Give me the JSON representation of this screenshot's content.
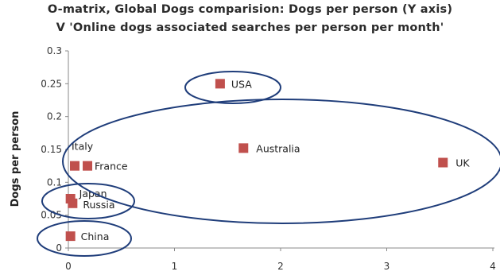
{
  "chart_data": {
    "type": "scatter",
    "title_line1": "O-matrix, Global Dogs comparision: Dogs per person (Y axis)",
    "title_line2": "V 'Online dogs associated searches per person per month'",
    "xlabel": "",
    "ylabel": "Dogs per person",
    "xlim": [
      0,
      4
    ],
    "ylim": [
      0,
      0.3
    ],
    "x_ticks": [
      "0",
      "1",
      "2",
      "3",
      "4"
    ],
    "y_ticks": [
      "0",
      "0.05",
      "0.1",
      "0.15",
      "0.2",
      "0.25",
      "0.3"
    ],
    "grid": false,
    "marker_color": "#c0504d",
    "ellipse_color": "#1f3d7a",
    "points": [
      {
        "label": "USA",
        "x": 1.43,
        "y": 0.25
      },
      {
        "label": "Italy",
        "x": 0.06,
        "y": 0.125
      },
      {
        "label": "France",
        "x": 0.18,
        "y": 0.125
      },
      {
        "label": "Australia",
        "x": 1.65,
        "y": 0.152
      },
      {
        "label": "UK",
        "x": 3.53,
        "y": 0.13
      },
      {
        "label": "Japan",
        "x": 0.02,
        "y": 0.075
      },
      {
        "label": "Russia",
        "x": 0.04,
        "y": 0.068
      },
      {
        "label": "China",
        "x": 0.02,
        "y": 0.018
      }
    ]
  }
}
